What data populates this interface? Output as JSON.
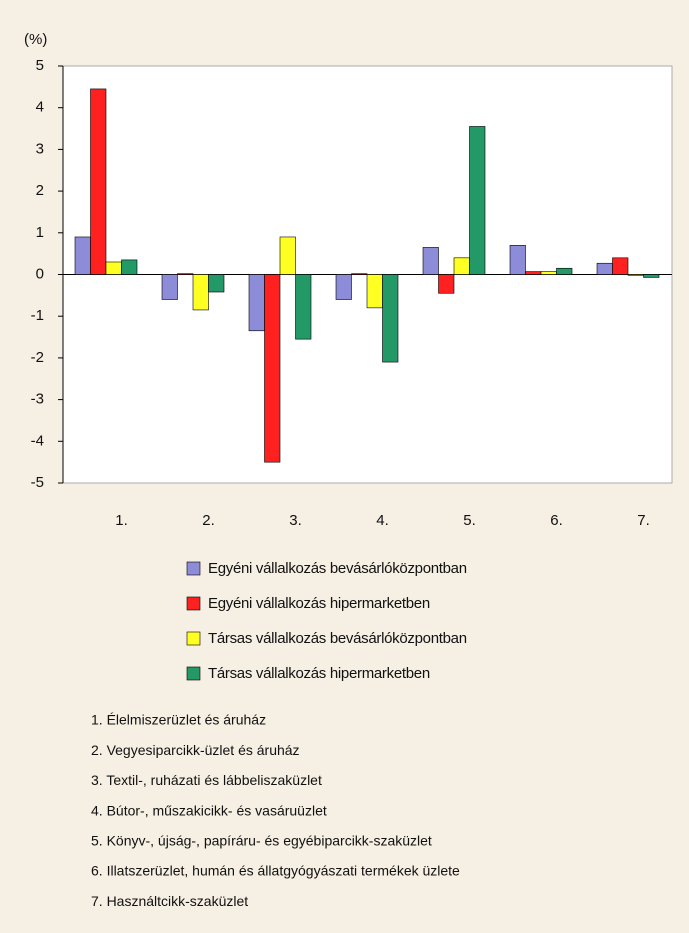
{
  "chart_data": {
    "type": "bar",
    "y_label": "(%)",
    "categories": [
      "1.",
      "2.",
      "3.",
      "4.",
      "5.",
      "6.",
      "7."
    ],
    "series": [
      {
        "name": "Egyéni vállalkozás bevásárlóközpontban",
        "color": "#8c8cd8",
        "values": [
          0.9,
          -0.6,
          -1.35,
          -0.6,
          0.65,
          0.7,
          0.27
        ]
      },
      {
        "name": "Egyéni vállalkozás hipermarketben",
        "color": "#ff2020",
        "values": [
          4.45,
          0.02,
          -4.5,
          0.02,
          -0.45,
          0.07,
          0.4
        ]
      },
      {
        "name": "Társas vállalkozás bevásárlóközpontban",
        "color": "#ffff22",
        "values": [
          0.3,
          -0.85,
          0.9,
          -0.8,
          0.4,
          0.07,
          0
        ]
      },
      {
        "name": "Társas vállalkozás hipermarketben",
        "color": "#229966",
        "values": [
          0.35,
          -0.42,
          -1.55,
          -2.1,
          3.55,
          0.15,
          -0.07
        ]
      }
    ],
    "ylim": [
      -5,
      5
    ],
    "yticks": [
      -5,
      -4,
      -3,
      -2,
      -1,
      0,
      1,
      2,
      3,
      4,
      5
    ],
    "grid": false,
    "notes": [
      "1. Élelmiszerüzlet és áruház",
      "2. Vegyesiparcikk-üzlet és áruház",
      "3. Textil-, ruházati és lábbeliszaküzlet",
      "4. Bútor-, műszakicikk- és vasáruüzlet",
      "5. Könyv-, újság-, papíráru- és egyébiparcikk-szaküzlet",
      "6. Illatszerüzlet, humán és állatgyógyászati termékek üzlete",
      "7. Használtcikk-szaküzlet"
    ]
  }
}
